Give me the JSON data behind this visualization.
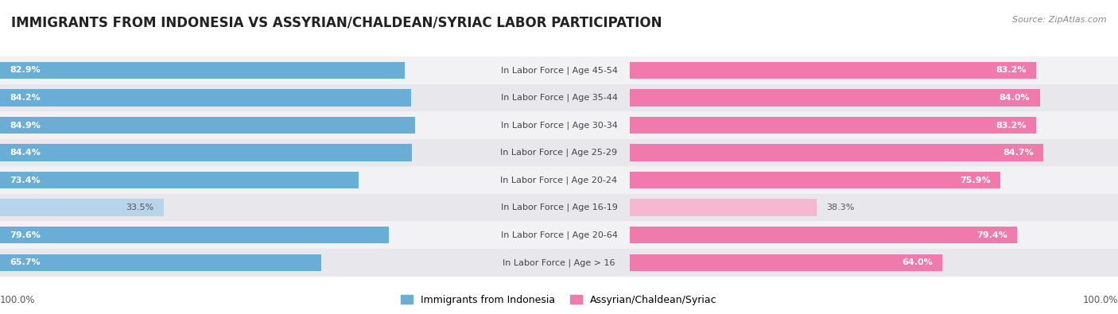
{
  "title": "IMMIGRANTS FROM INDONESIA VS ASSYRIAN/CHALDEAN/SYRIAC LABOR PARTICIPATION",
  "source": "Source: ZipAtlas.com",
  "categories": [
    "In Labor Force | Age > 16",
    "In Labor Force | Age 20-64",
    "In Labor Force | Age 16-19",
    "In Labor Force | Age 20-24",
    "In Labor Force | Age 25-29",
    "In Labor Force | Age 30-34",
    "In Labor Force | Age 35-44",
    "In Labor Force | Age 45-54"
  ],
  "indonesia_values": [
    65.7,
    79.6,
    33.5,
    73.4,
    84.4,
    84.9,
    84.2,
    82.9
  ],
  "assyrian_values": [
    64.0,
    79.4,
    38.3,
    75.9,
    84.7,
    83.2,
    84.0,
    83.2
  ],
  "indonesia_color": "#6aaed6",
  "indonesia_light_color": "#b8d4ea",
  "assyrian_color": "#f07aab",
  "assyrian_light_color": "#f5b8d0",
  "row_bg_even": "#e8e8ec",
  "row_bg_odd": "#f2f2f5",
  "max_value": 100.0,
  "legend_indonesia": "Immigrants from Indonesia",
  "legend_assyrian": "Assyrian/Chaldean/Syriac",
  "title_fontsize": 12,
  "label_fontsize": 8,
  "value_fontsize": 8,
  "footer_fontsize": 8.5,
  "source_fontsize": 8
}
